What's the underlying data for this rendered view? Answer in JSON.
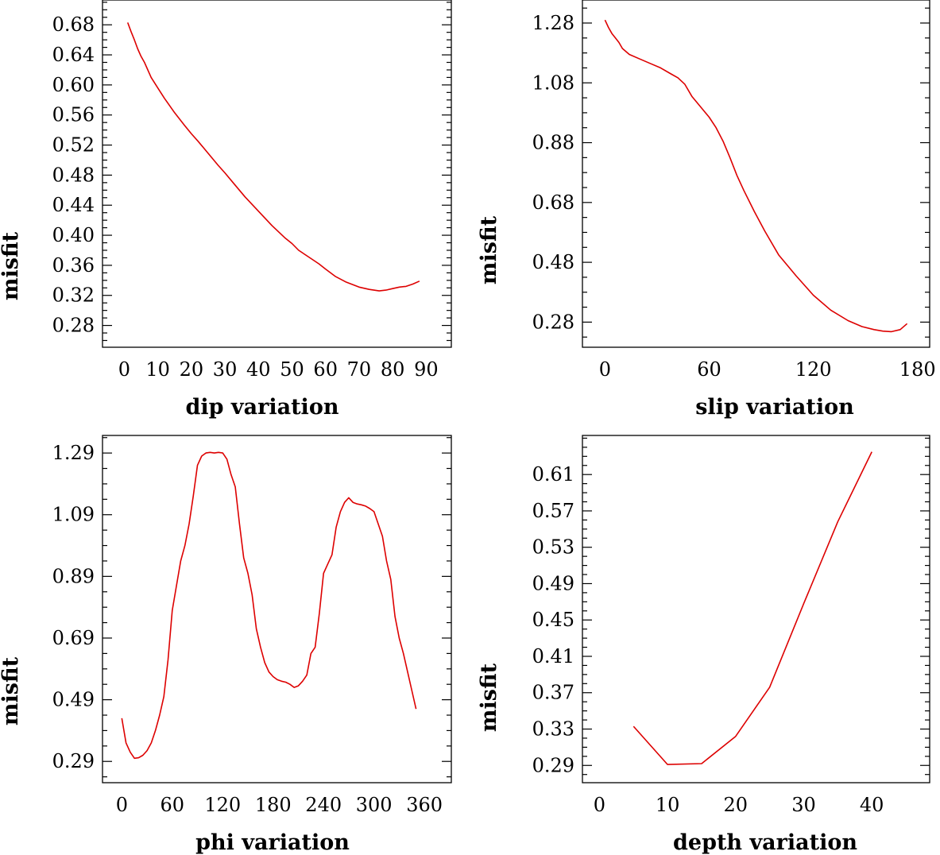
{
  "chart_data": [
    {
      "type": "line",
      "xlabel": "dip    variation",
      "ylabel": "misfit",
      "xlim": [
        -6.5,
        97.5
      ],
      "ylim": [
        0.251,
        0.713
      ],
      "xticks": [
        0,
        10,
        20,
        30,
        40,
        50,
        60,
        70,
        80,
        90
      ],
      "yticks": [
        0.28,
        0.32,
        0.36,
        0.4,
        0.44,
        0.48,
        0.52,
        0.56,
        0.6,
        0.64,
        0.68
      ],
      "ytick_labels": [
        "0.28",
        "0.32",
        "0.36",
        "0.40",
        "0.44",
        "0.48",
        "0.52",
        "0.56",
        "0.60",
        "0.64",
        "0.68"
      ],
      "color": "#dd0000",
      "series": [
        {
          "x": [
            1,
            2,
            3,
            4,
            5,
            6,
            8,
            10,
            12,
            15,
            18,
            20,
            22,
            25,
            28,
            30,
            33,
            36,
            40,
            44,
            48,
            50,
            52,
            55,
            58,
            60,
            63,
            66,
            70,
            73,
            76,
            78,
            80,
            82,
            84,
            86,
            88
          ],
          "y": [
            0.683,
            0.671,
            0.66,
            0.648,
            0.638,
            0.63,
            0.61,
            0.596,
            0.582,
            0.563,
            0.546,
            0.535,
            0.525,
            0.509,
            0.493,
            0.483,
            0.467,
            0.451,
            0.432,
            0.413,
            0.396,
            0.389,
            0.38,
            0.371,
            0.362,
            0.355,
            0.345,
            0.338,
            0.331,
            0.328,
            0.326,
            0.327,
            0.329,
            0.331,
            0.332,
            0.335,
            0.339
          ]
        }
      ]
    },
    {
      "type": "line",
      "xlabel": "slip   variation",
      "ylabel": "misfit",
      "xlim": [
        -13,
        187
      ],
      "ylim": [
        0.196,
        1.357
      ],
      "xticks": [
        0,
        60,
        120,
        180
      ],
      "yticks": [
        0.28,
        0.48,
        0.68,
        0.88,
        1.08,
        1.28
      ],
      "ytick_labels": [
        "0.28",
        "0.48",
        "0.68",
        "0.88",
        "1.08",
        "1.28"
      ],
      "color": "#dd0000",
      "series": [
        {
          "x": [
            0,
            2,
            4,
            6,
            8,
            10,
            14,
            20,
            26,
            32,
            38,
            42,
            46,
            50,
            55,
            60,
            64,
            68,
            72,
            76,
            80,
            86,
            92,
            100,
            110,
            120,
            130,
            140,
            148,
            155,
            160,
            165,
            170,
            174
          ],
          "y": [
            1.29,
            1.265,
            1.245,
            1.23,
            1.215,
            1.195,
            1.175,
            1.16,
            1.145,
            1.13,
            1.11,
            1.097,
            1.075,
            1.035,
            1.0,
            0.965,
            0.93,
            0.885,
            0.83,
            0.77,
            0.72,
            0.65,
            0.585,
            0.505,
            0.435,
            0.37,
            0.32,
            0.285,
            0.265,
            0.255,
            0.25,
            0.248,
            0.255,
            0.275
          ]
        }
      ]
    },
    {
      "type": "line",
      "xlabel": "phi    variation",
      "ylabel": "misfit",
      "xlim": [
        -23,
        392
      ],
      "ylim": [
        0.221,
        1.347
      ],
      "xticks": [
        0,
        60,
        120,
        180,
        240,
        300,
        360
      ],
      "yticks": [
        0.29,
        0.49,
        0.69,
        0.89,
        1.09,
        1.29
      ],
      "ytick_labels": [
        "0.29",
        "0.49",
        "0.69",
        "0.89",
        "1.09",
        "1.29"
      ],
      "color": "#dd0000",
      "series": [
        {
          "x": [
            0,
            5,
            10,
            15,
            20,
            25,
            30,
            35,
            40,
            45,
            50,
            55,
            60,
            65,
            70,
            75,
            80,
            85,
            90,
            95,
            100,
            105,
            110,
            115,
            120,
            125,
            130,
            135,
            140,
            145,
            150,
            155,
            160,
            165,
            170,
            175,
            180,
            185,
            190,
            195,
            200,
            205,
            210,
            215,
            220,
            225,
            230,
            235,
            240,
            245,
            250,
            255,
            260,
            265,
            270,
            275,
            280,
            285,
            290,
            295,
            300,
            305,
            310,
            315,
            320,
            325,
            330,
            335,
            340,
            345,
            350
          ],
          "y": [
            0.43,
            0.35,
            0.32,
            0.3,
            0.302,
            0.31,
            0.325,
            0.35,
            0.39,
            0.44,
            0.5,
            0.62,
            0.78,
            0.86,
            0.94,
            0.99,
            1.06,
            1.15,
            1.25,
            1.28,
            1.29,
            1.292,
            1.29,
            1.292,
            1.29,
            1.27,
            1.22,
            1.18,
            1.06,
            0.95,
            0.9,
            0.83,
            0.72,
            0.66,
            0.61,
            0.58,
            0.565,
            0.555,
            0.55,
            0.547,
            0.54,
            0.53,
            0.535,
            0.55,
            0.57,
            0.64,
            0.66,
            0.77,
            0.9,
            0.93,
            0.96,
            1.05,
            1.1,
            1.13,
            1.145,
            1.13,
            1.125,
            1.122,
            1.118,
            1.11,
            1.1,
            1.06,
            1.02,
            0.94,
            0.88,
            0.76,
            0.69,
            0.64,
            0.58,
            0.52,
            0.46
          ]
        }
      ]
    },
    {
      "type": "line",
      "xlabel": "depth  variation",
      "ylabel": "misfit",
      "xlim": [
        -2.5,
        48.5
      ],
      "ylim": [
        0.271,
        0.653
      ],
      "xticks": [
        0,
        10,
        20,
        30,
        40
      ],
      "yticks": [
        0.29,
        0.33,
        0.37,
        0.41,
        0.45,
        0.49,
        0.53,
        0.57,
        0.61
      ],
      "ytick_labels": [
        "0.29",
        "0.33",
        "0.37",
        "0.41",
        "0.45",
        "0.49",
        "0.53",
        "0.57",
        "0.61"
      ],
      "color": "#dd0000",
      "series": [
        {
          "x": [
            5,
            10,
            15,
            20,
            25,
            30,
            35,
            40
          ],
          "y": [
            0.333,
            0.291,
            0.292,
            0.322,
            0.376,
            0.468,
            0.558,
            0.635
          ]
        }
      ]
    }
  ]
}
